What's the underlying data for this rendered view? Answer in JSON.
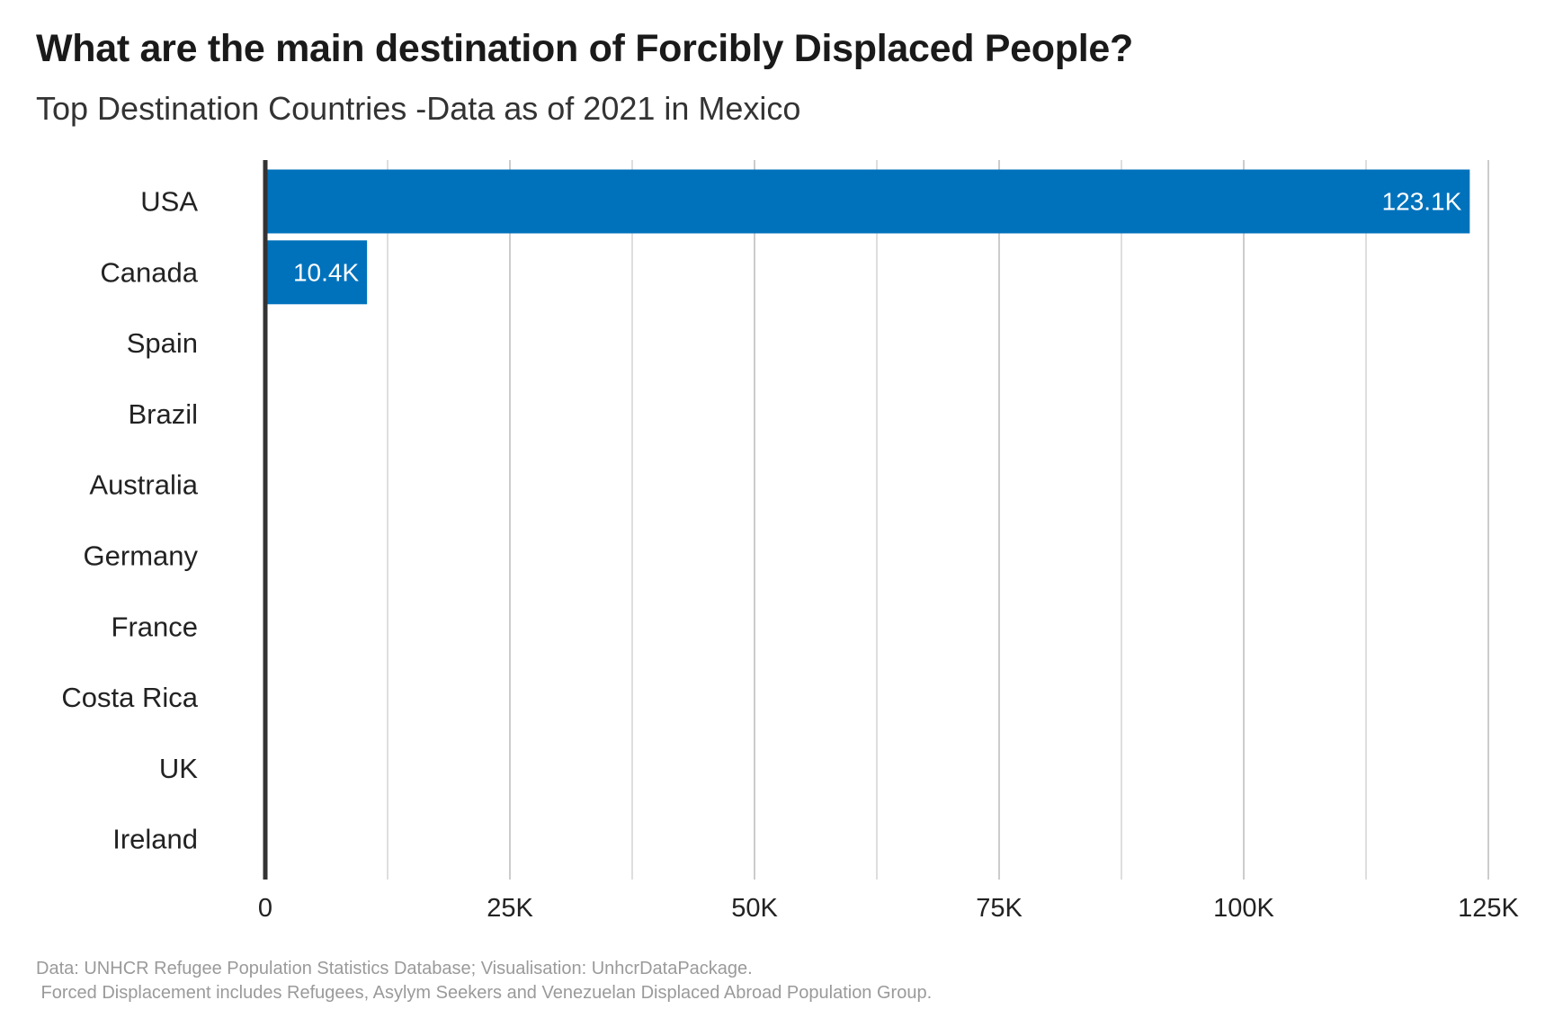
{
  "chart_data": {
    "type": "bar",
    "orientation": "horizontal",
    "title": "What are the main destination of Forcibly Displaced People?",
    "subtitle": "Top Destination Countries -Data as of 2021  in Mexico",
    "categories": [
      "USA",
      "Canada",
      "Spain",
      "Brazil",
      "Australia",
      "Germany",
      "France",
      "Costa Rica",
      "UK",
      "Ireland"
    ],
    "values": [
      123100,
      10400,
      0,
      0,
      0,
      0,
      0,
      0,
      0,
      0
    ],
    "data_labels": [
      "123.1K",
      "10.4K",
      "",
      "",
      "",
      "",
      "",
      "",
      "",
      ""
    ],
    "xlim": [
      0,
      125000
    ],
    "x_ticks": [
      0,
      25000,
      50000,
      75000,
      100000,
      125000
    ],
    "x_tick_labels": [
      "0",
      "25K",
      "50K",
      "75K",
      "100K",
      "125K"
    ],
    "xlabel": "",
    "ylabel": "",
    "grid": "vertical",
    "legend": "none",
    "bar_color": "#0072bc",
    "axis_color": "#333333",
    "grid_color": "#cccccc"
  },
  "caption": {
    "line1": "Data: UNHCR Refugee Population Statistics Database; Visualisation: UnhcrDataPackage.",
    "line2": " Forced Displacement includes Refugees, Asylym Seekers and Venezuelan Displaced Abroad Population Group."
  }
}
